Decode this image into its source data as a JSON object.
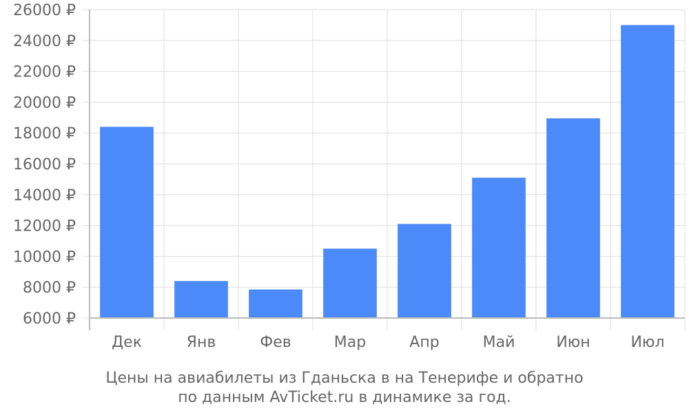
{
  "chart_data": {
    "type": "bar",
    "categories": [
      "Дек",
      "Янв",
      "Фев",
      "Мар",
      "Апр",
      "Май",
      "Июн",
      "Июл"
    ],
    "values": [
      18400,
      8400,
      7850,
      10500,
      12100,
      15100,
      18950,
      25000
    ],
    "ylim": [
      6000,
      26000
    ],
    "yticks": [
      6000,
      8000,
      10000,
      12000,
      14000,
      16000,
      18000,
      20000,
      22000,
      24000,
      26000
    ],
    "tick_suffix": " ₽",
    "grid": true,
    "bar_color": "#4d8af9",
    "caption_lines": [
      "Цены на авиабилеты из Гданьска в на Тенерифе и обратно",
      "по данным AvTicket.ru в динамике за год."
    ]
  }
}
